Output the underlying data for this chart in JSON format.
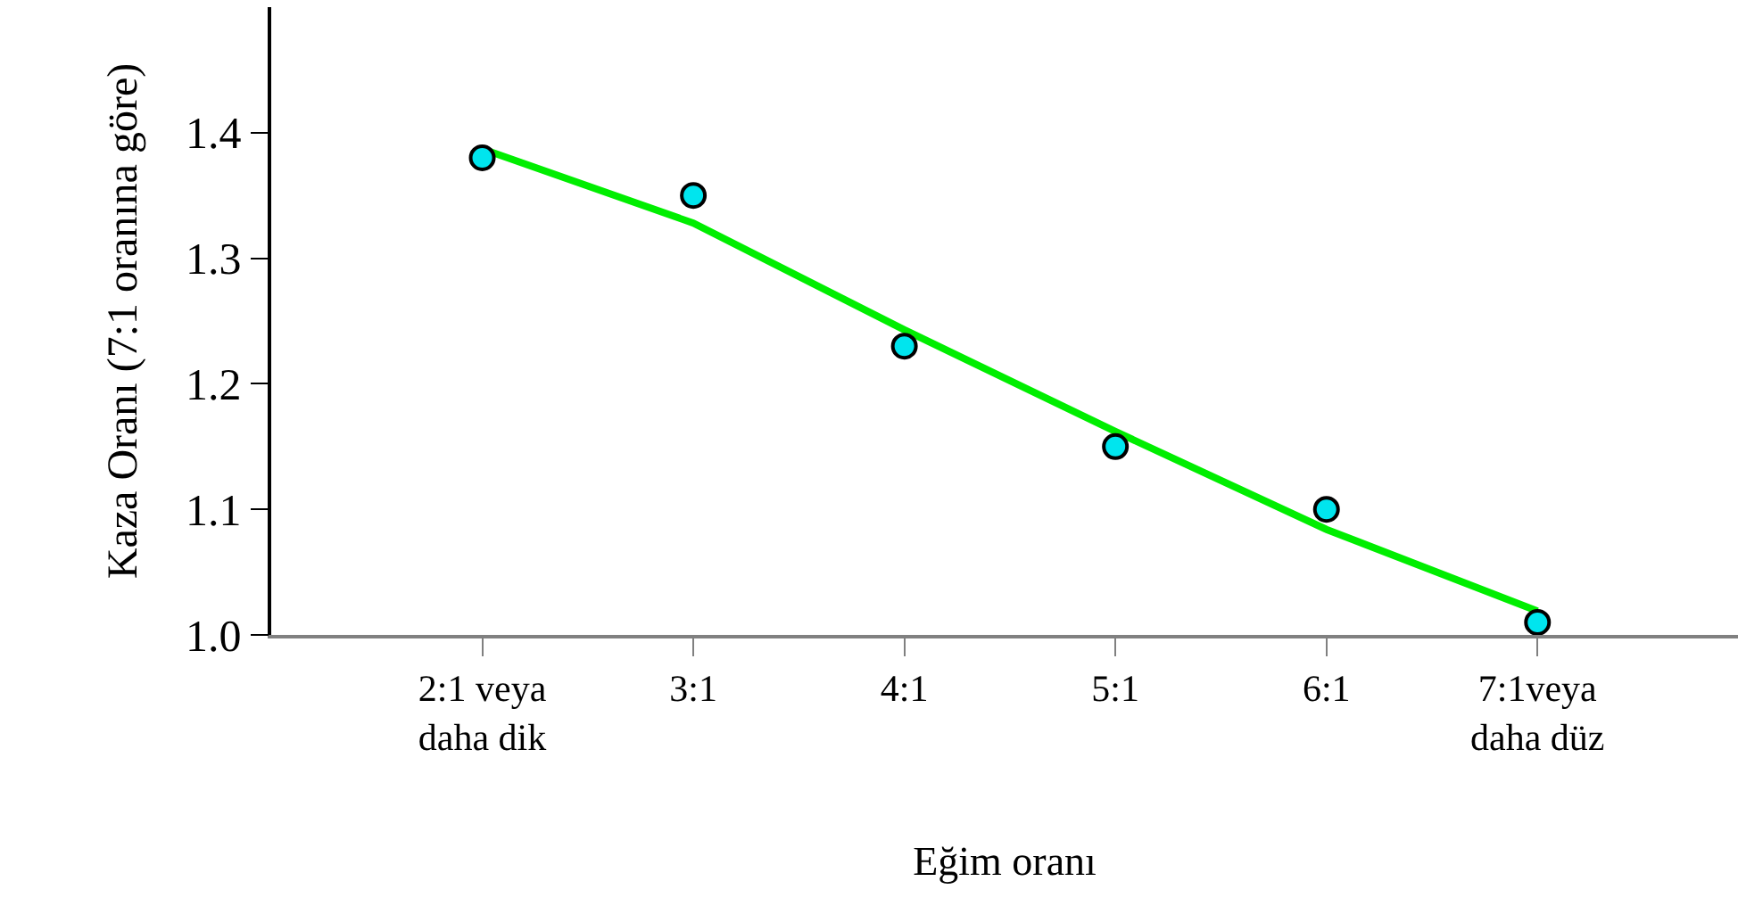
{
  "chart_data": {
    "type": "scatter",
    "xlabel": "Eğim oranı",
    "ylabel": "Kaza Oranı (7:1 oranına göre)",
    "categories": [
      "2:1 veya\ndaha dik",
      "3:1",
      "4:1",
      "5:1",
      "6:1",
      "7:1veya\ndaha düz"
    ],
    "ylim": [
      1.0,
      1.5
    ],
    "yticks": [
      {
        "value": 1.0,
        "label": "1.0"
      },
      1.1,
      1.2,
      1.3,
      1.4
    ],
    "grid": false,
    "marker": "circle",
    "series": [
      {
        "type": "line",
        "color": "#00ee00",
        "values": [
          1.387,
          1.328,
          1.243,
          1.162,
          1.084,
          1.019
        ],
        "marker": "none",
        "line_style": "solid"
      },
      {
        "color": "#00e5ee",
        "values": [
          1.38,
          1.35,
          1.23,
          1.15,
          1.1,
          1.01
        ]
      }
    ]
  }
}
